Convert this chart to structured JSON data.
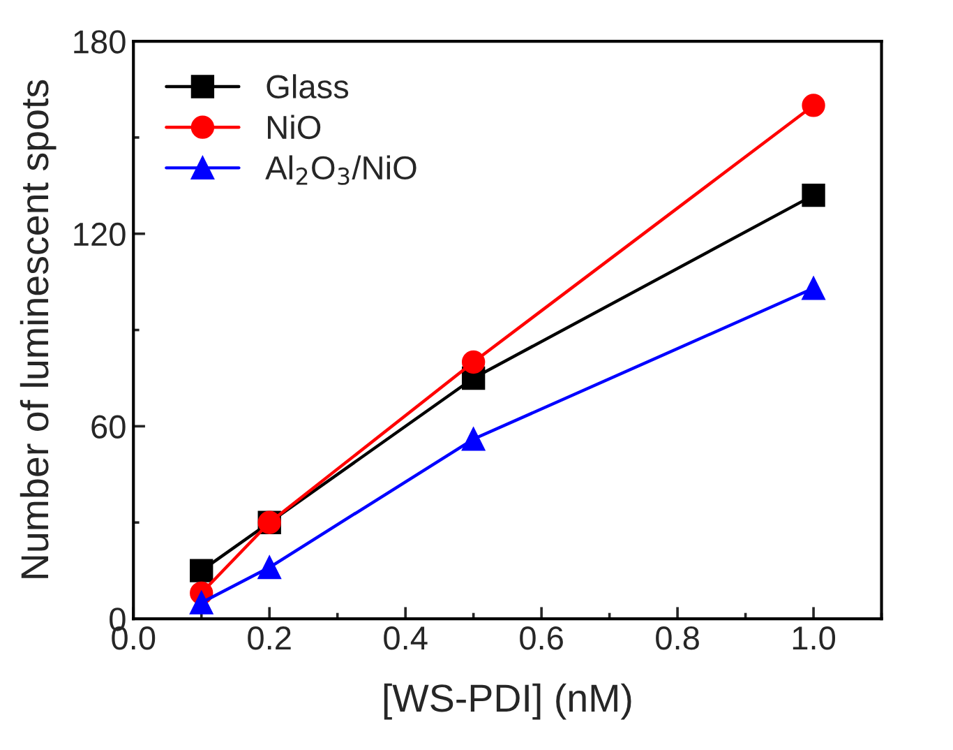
{
  "chart_data": {
    "type": "line",
    "xlabel": "[WS-PDI] (nM)",
    "ylabel": "Number of luminescent spots",
    "x": [
      0.1,
      0.2,
      0.5,
      1.0
    ],
    "series": [
      {
        "name": "Glass",
        "color": "#000000",
        "marker": "square",
        "values": [
          15,
          30,
          75,
          132
        ]
      },
      {
        "name": "NiO",
        "color": "#ff0000",
        "marker": "circle",
        "values": [
          8,
          30,
          80,
          160
        ]
      },
      {
        "name": "Al$_{2}$O$_{3}$/NiO",
        "color": "#0000ff",
        "marker": "triangle",
        "values": [
          5,
          16,
          56,
          103
        ]
      }
    ],
    "xlim": [
      0.0,
      1.1
    ],
    "xticks": [
      {
        "value": 0.0,
        "label": "0.0"
      },
      {
        "value": 0.2,
        "label": "0.2"
      },
      {
        "value": 0.4,
        "label": "0.4"
      },
      {
        "value": 0.6,
        "label": "0.6"
      },
      {
        "value": 0.8,
        "label": "0.8"
      },
      {
        "value": 1.0,
        "label": "1.0"
      }
    ],
    "ylim": [
      0,
      180
    ],
    "yticks": [
      0,
      60,
      120,
      180
    ],
    "legend": "top left",
    "grid": false,
    "line_style": "solid"
  }
}
